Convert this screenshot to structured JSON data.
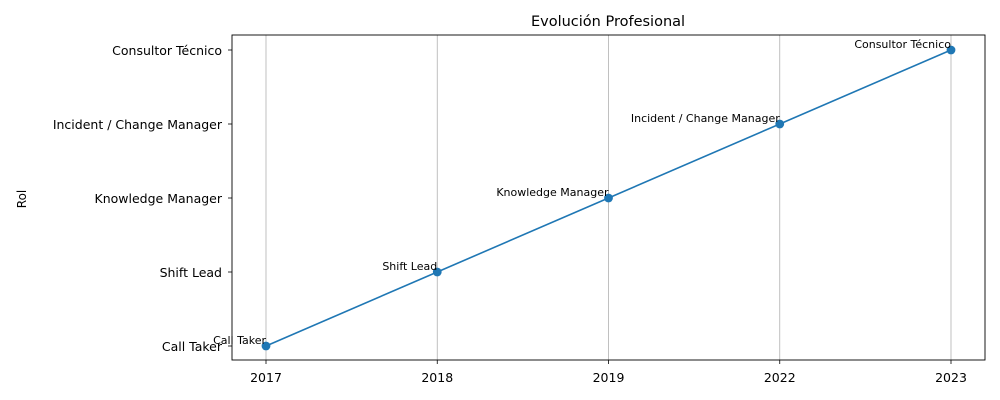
{
  "chart_data": {
    "type": "line",
    "title": "Evolución Profesional",
    "xlabel": "",
    "ylabel": "Rol",
    "grid": "vertical",
    "x": [
      "2017",
      "2018",
      "2019",
      "2022",
      "2023"
    ],
    "y_categories": [
      "Call Taker",
      "Shift Lead",
      "Knowledge Manager",
      "Incident / Change Manager",
      "Consultor Técnico"
    ],
    "series": [
      {
        "color": "#1f77b4",
        "marker": "circle",
        "points": [
          {
            "x": "2017",
            "y": "Call Taker",
            "label": "Call Taker"
          },
          {
            "x": "2018",
            "y": "Shift Lead",
            "label": "Shift Lead"
          },
          {
            "x": "2019",
            "y": "Knowledge Manager",
            "label": "Knowledge Manager"
          },
          {
            "x": "2022",
            "y": "Incident / Change Manager",
            "label": "Incident / Change Manager"
          },
          {
            "x": "2023",
            "y": "Consultor Técnico",
            "label": "Consultor Técnico"
          }
        ]
      }
    ]
  }
}
